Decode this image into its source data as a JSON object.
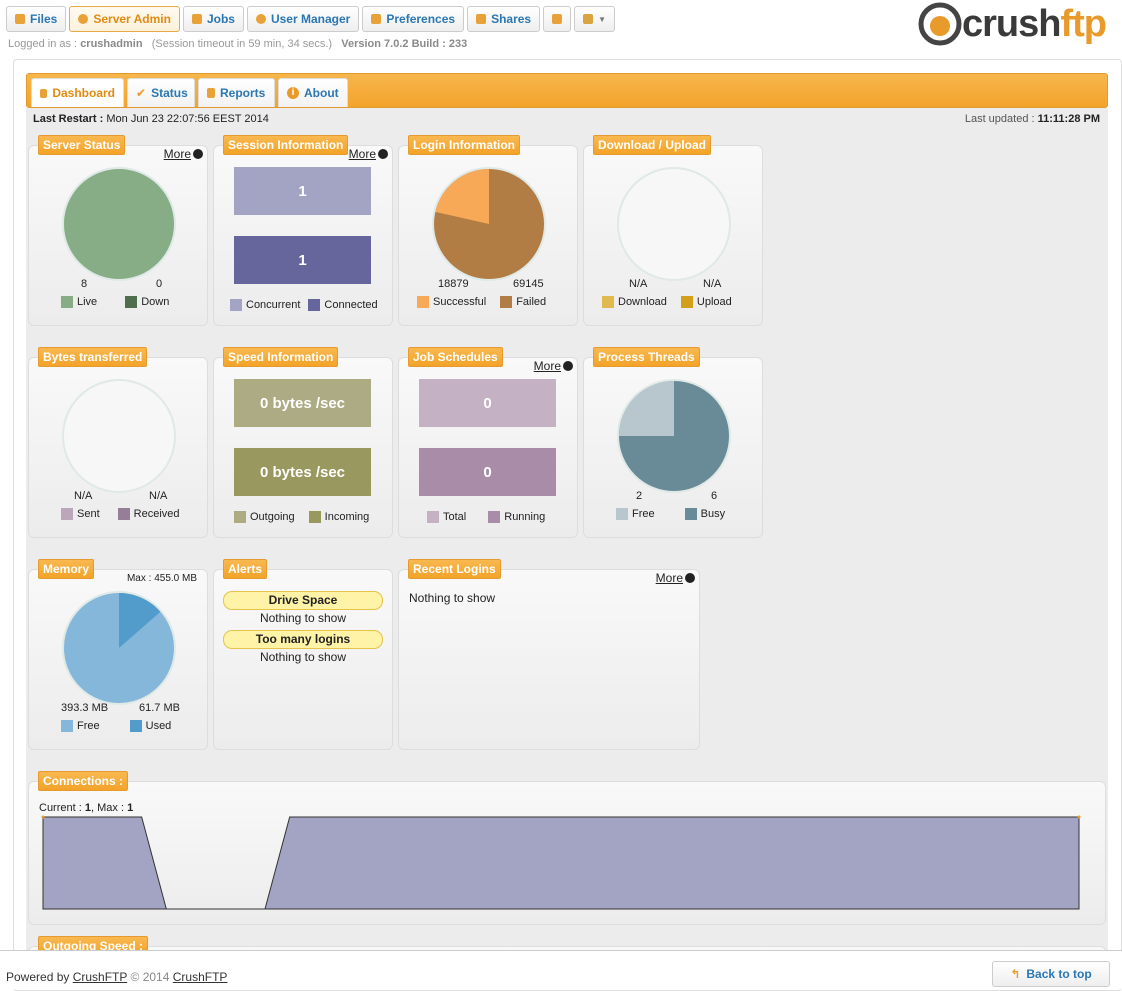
{
  "topnav": [
    {
      "label": "Files",
      "icon": "folder-icon"
    },
    {
      "label": "Server Admin",
      "icon": "gear-icon"
    },
    {
      "label": "Jobs",
      "icon": "jobs-icon"
    },
    {
      "label": "User Manager",
      "icon": "user-icon"
    },
    {
      "label": "Preferences",
      "icon": "preferences-icon"
    },
    {
      "label": "Shares",
      "icon": "shares-icon"
    }
  ],
  "login": {
    "prefix": "Logged in as :",
    "user": "crushadmin",
    "session": "(Session timeout in 59 min, 34 secs.)",
    "version": "Version 7.0.2 Build : 233"
  },
  "logo": {
    "text1": "crush",
    "text2": "ftp"
  },
  "tabs": [
    {
      "label": "Dashboard",
      "icon": "home-icon"
    },
    {
      "label": "Status",
      "icon": "check-icon"
    },
    {
      "label": "Reports",
      "icon": "report-icon"
    },
    {
      "label": "About",
      "icon": "info-icon"
    }
  ],
  "last_restart": {
    "label": "Last Restart :",
    "value": "Mon Jun 23 22:07:56 EEST 2014"
  },
  "last_updated": {
    "label": "Last updated :",
    "value": "11:11:28 PM"
  },
  "more_label": "More",
  "panels": {
    "server_status": {
      "title": "Server Status",
      "live": "8",
      "down": "0",
      "live_label": "Live",
      "down_label": "Down",
      "color_live": "#86ad86",
      "color_down": "#4e6e4e"
    },
    "session": {
      "title": "Session Information",
      "concurrent": "1",
      "connected": "1",
      "concurrent_label": "Concurrent",
      "connected_label": "Connected",
      "color_concurrent": "#a3a3c4",
      "color_connected": "#66669c"
    },
    "login": {
      "title": "Login Information",
      "successful": "18879",
      "failed": "69145",
      "successful_label": "Successful",
      "failed_label": "Failed",
      "color_successful": "#f7a957",
      "color_failed": "#b27d44"
    },
    "download_upload": {
      "title": "Download / Upload",
      "download": "N/A",
      "upload": "N/A",
      "download_label": "Download",
      "upload_label": "Upload",
      "color_download": "#e1ba4f",
      "color_upload": "#d39e1a"
    },
    "bytes": {
      "title": "Bytes transferred",
      "sent": "N/A",
      "received": "N/A",
      "sent_label": "Sent",
      "received_label": "Received",
      "color_sent": "#bba7bc",
      "color_received": "#967e97"
    },
    "speed": {
      "title": "Speed Information",
      "outgoing": "0 bytes /sec",
      "incoming": "0 bytes /sec",
      "outgoing_label": "Outgoing",
      "incoming_label": "Incoming",
      "color_outgoing": "#acab84",
      "color_incoming": "#99995f"
    },
    "jobs": {
      "title": "Job Schedules",
      "total": "0",
      "running": "0",
      "total_label": "Total",
      "running_label": "Running",
      "color_total": "#c4b1c4",
      "color_running": "#a88ca8"
    },
    "threads": {
      "title": "Process Threads",
      "free": "2",
      "busy": "6",
      "free_label": "Free",
      "busy_label": "Busy",
      "color_free": "#b7c7cd",
      "color_busy": "#688b97"
    },
    "memory": {
      "title": "Memory",
      "max": "Max : 455.0 MB",
      "free": "393.3 MB",
      "used": "61.7 MB",
      "free_label": "Free",
      "used_label": "Used",
      "free_value": 393.3,
      "used_value": 61.7,
      "color_free": "#84b7da",
      "color_used": "#529ccb"
    },
    "alerts": {
      "title": "Alerts",
      "items": [
        {
          "name": "Drive Space",
          "text": "Nothing to show"
        },
        {
          "name": "Too many logins",
          "text": "Nothing to show"
        }
      ]
    },
    "recent_logins": {
      "title": "Recent Logins",
      "text": "Nothing to show"
    },
    "connections": {
      "title": "Connections :",
      "current_label": "Current :",
      "current": "1",
      "max_label": "Max :",
      "max": "1"
    },
    "outgoing_speed": {
      "title": "Outgoing Speed :"
    }
  },
  "chart_data": {
    "type": "area",
    "title": "Connections :",
    "series": [
      {
        "values": [
          1,
          1,
          1,
          1,
          1,
          0,
          0,
          0,
          0,
          0,
          1,
          1,
          1,
          1,
          1,
          1,
          1,
          1,
          1,
          1,
          1,
          1,
          1,
          1,
          1,
          1,
          1,
          1,
          1,
          1,
          1,
          1,
          1,
          1,
          1,
          1,
          1,
          1,
          1,
          1,
          1,
          1,
          1
        ]
      }
    ],
    "ylim": [
      0,
      1
    ]
  },
  "footer": {
    "powered_prefix": "Powered by",
    "powered_link": "CrushFTP",
    "copyright": "© 2014",
    "company_link": "CrushFTP",
    "back_to_top": "Back to top"
  }
}
